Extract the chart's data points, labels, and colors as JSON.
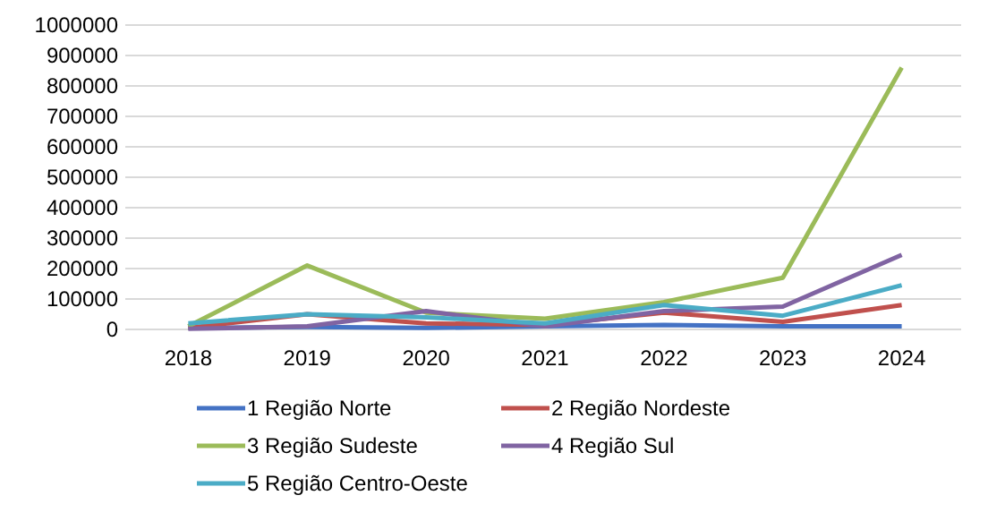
{
  "chart_data": {
    "type": "line",
    "categories": [
      "2018",
      "2019",
      "2020",
      "2021",
      "2022",
      "2023",
      "2024"
    ],
    "series": [
      {
        "name": "1 Região Norte",
        "color": "#4472c4",
        "values": [
          5000,
          8000,
          5000,
          10000,
          15000,
          10000,
          10000
        ]
      },
      {
        "name": "2 Região Nordeste",
        "color": "#c0504d",
        "values": [
          5000,
          50000,
          20000,
          15000,
          55000,
          25000,
          80000
        ]
      },
      {
        "name": "3 Região Sudeste",
        "color": "#9bbb59",
        "values": [
          10000,
          210000,
          55000,
          35000,
          90000,
          170000,
          860000
        ]
      },
      {
        "name": "4 Região Sul",
        "color": "#8064a2",
        "values": [
          2000,
          10000,
          60000,
          10000,
          60000,
          75000,
          245000
        ]
      },
      {
        "name": "5 Região Centro-Oeste",
        "color": "#4bacc6",
        "values": [
          20000,
          50000,
          40000,
          20000,
          80000,
          45000,
          145000
        ]
      }
    ],
    "ylim": [
      0,
      1000000
    ],
    "yticks": [
      0,
      100000,
      200000,
      300000,
      400000,
      500000,
      600000,
      700000,
      800000,
      900000,
      1000000
    ],
    "grid": "y",
    "legend": "bottom",
    "line_style": "solid",
    "marker": "none"
  }
}
